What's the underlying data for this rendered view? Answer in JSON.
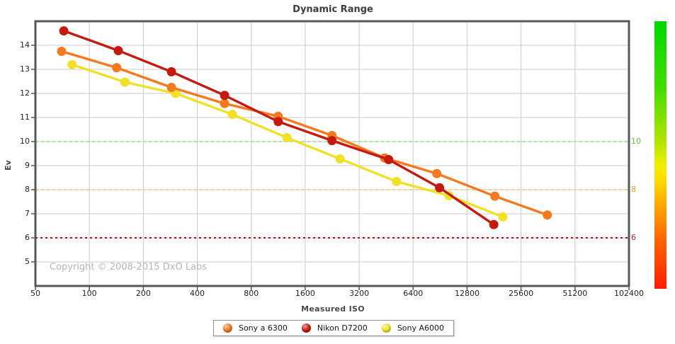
{
  "title": "Dynamic Range",
  "copyright": "Copyright © 2008-2015 DxO Labs",
  "axes": {
    "x_label": "Measured ISO",
    "y_label": "Ev"
  },
  "chart_data": {
    "type": "line",
    "title": "Dynamic Range",
    "xlabel": "Measured ISO",
    "ylabel": "Ev",
    "x_scale": "log",
    "xlim": [
      50,
      102400
    ],
    "ylim": [
      4,
      15
    ],
    "x_ticks": [
      50,
      100,
      200,
      400,
      800,
      1600,
      3200,
      6400,
      12800,
      25600,
      51200,
      102400
    ],
    "y_ticks": [
      5,
      6,
      7,
      8,
      9,
      10,
      11,
      12,
      13,
      14
    ],
    "grid": true,
    "legend_position": "bottom-center",
    "frame_color": "#54585a",
    "grid_color": "#cbcbcb",
    "series": [
      {
        "name": "Sony a 6300",
        "color": "#F5791F",
        "points": [
          [
            70,
            13.75
          ],
          [
            142,
            13.07
          ],
          [
            287,
            12.25
          ],
          [
            568,
            11.58
          ],
          [
            1131,
            11.05
          ],
          [
            2257,
            10.25
          ],
          [
            4438,
            9.32
          ],
          [
            8674,
            8.67
          ],
          [
            18289,
            7.73
          ],
          [
            35893,
            6.95
          ]
        ]
      },
      {
        "name": "Nikon D7200",
        "color": "#C41A10",
        "points": [
          [
            72,
            14.6
          ],
          [
            145,
            13.78
          ],
          [
            287,
            12.9
          ],
          [
            568,
            11.92
          ],
          [
            1131,
            10.83
          ],
          [
            2257,
            10.04
          ],
          [
            4675,
            9.25
          ],
          [
            8989,
            8.08
          ],
          [
            18036,
            6.55
          ]
        ]
      },
      {
        "name": "Sony A6000",
        "color": "#F0E128",
        "points": [
          [
            80,
            13.2
          ],
          [
            158,
            12.47
          ],
          [
            303,
            12.0
          ],
          [
            627,
            11.13
          ],
          [
            1266,
            10.16
          ],
          [
            2501,
            9.28
          ],
          [
            5170,
            8.34
          ],
          [
            10153,
            7.75
          ],
          [
            20272,
            6.87
          ]
        ]
      }
    ],
    "draw_order": [
      2,
      0,
      1
    ],
    "thresholds": [
      {
        "label": "10",
        "value": 10,
        "line_color": "#ACE89A",
        "label_color": "#5BC33C",
        "dash": "4,4"
      },
      {
        "label": "8",
        "value": 8,
        "line_color": "#F7D383",
        "label_color": "#EE9822",
        "dash": "4,4"
      },
      {
        "label": "6",
        "value": 6,
        "line_color": "#C40A0A",
        "label_color": "#C42020",
        "dash": "3,4"
      }
    ],
    "colorbar": {
      "colors": [
        "#00D800",
        "#44DC00",
        "#B4E400",
        "#F0F000",
        "#FFD800",
        "#FFA000",
        "#FF6400",
        "#FF1E00"
      ],
      "stops": [
        0,
        25,
        45,
        54,
        60,
        70,
        82,
        100
      ]
    }
  }
}
